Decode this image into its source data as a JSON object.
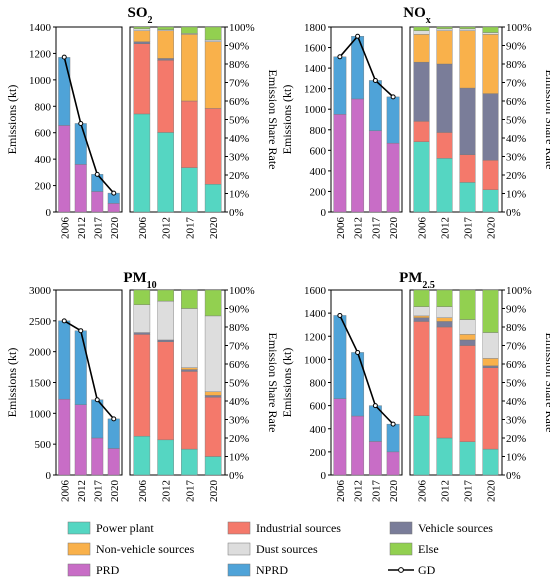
{
  "chart_data": [
    {
      "type": "bar",
      "title": "SO",
      "title_sub": "2",
      "x": [
        "2006",
        "2012",
        "2017",
        "2020"
      ],
      "emissions": {
        "ylabel": "Emissions (kt)",
        "ylim": [
          0,
          1400
        ],
        "ticks": [
          "0",
          "200",
          "400",
          "600",
          "800",
          "1000",
          "1200",
          "1400"
        ],
        "PRD": [
          655,
          360,
          155,
          65
        ],
        "NPRD": [
          515,
          310,
          130,
          78
        ],
        "GD": [
          1172,
          670,
          285,
          143
        ]
      },
      "share": {
        "ylabel": "Emission Share Rate",
        "ylim": [
          0,
          100
        ],
        "ticks": [
          "0%",
          "10%",
          "20%",
          "30%",
          "40%",
          "50%",
          "60%",
          "70%",
          "80%",
          "90%",
          "100%"
        ],
        "Power plant": [
          53,
          43,
          24,
          15
        ],
        "Industrial sources": [
          38,
          39,
          36,
          41
        ],
        "Vehicle sources": [
          1,
          1,
          0,
          0
        ],
        "Non-vehicle sources": [
          6,
          15,
          36,
          36
        ],
        "Dust sources": [
          1,
          0.5,
          0.5,
          1
        ],
        "Else": [
          1,
          1.5,
          3.5,
          7
        ]
      }
    },
    {
      "type": "bar",
      "title": "NO",
      "title_sub": "x",
      "x": [
        "2006",
        "2012",
        "2017",
        "2020"
      ],
      "emissions": {
        "ylabel": "Emissions (kt)",
        "ylim": [
          0,
          1800
        ],
        "ticks": [
          "0",
          "200",
          "400",
          "600",
          "800",
          "1000",
          "1200",
          "1400",
          "1600",
          "1800"
        ],
        "PRD": [
          950,
          1100,
          790,
          670
        ],
        "NPRD": [
          560,
          610,
          490,
          450
        ],
        "GD": [
          1510,
          1710,
          1280,
          1120
        ]
      },
      "share": {
        "ylabel": "Emission Share Rate",
        "ylim": [
          0,
          100
        ],
        "ticks": [
          "0%",
          "10%",
          "20%",
          "30%",
          "40%",
          "50%",
          "60%",
          "70%",
          "80%",
          "90%",
          "100%"
        ],
        "Power plant": [
          38,
          29,
          16,
          12
        ],
        "Industrial sources": [
          11,
          14,
          15,
          16
        ],
        "Vehicle sources": [
          32,
          37,
          36,
          36
        ],
        "Non-vehicle sources": [
          15,
          18,
          31,
          32
        ],
        "Dust sources": [
          2,
          1,
          1,
          1
        ],
        "Else": [
          2,
          1,
          1,
          3
        ]
      }
    },
    {
      "type": "bar",
      "title": "PM",
      "title_sub": "10",
      "x": [
        "2006",
        "2012",
        "2017",
        "2020"
      ],
      "emissions": {
        "ylabel": "Emissions (kt)",
        "ylim": [
          0,
          3000
        ],
        "ticks": [
          "0",
          "500",
          "1000",
          "1500",
          "2000",
          "2500",
          "3000"
        ],
        "PRD": [
          1230,
          1140,
          600,
          430
        ],
        "NPRD": [
          1270,
          1200,
          620,
          480
        ],
        "GD": [
          2500,
          2340,
          1220,
          910
        ]
      },
      "share": {
        "ylabel": "Emission Share Rate",
        "ylim": [
          0,
          100
        ],
        "ticks": [
          "0%",
          "10%",
          "20%",
          "30%",
          "40%",
          "50%",
          "60%",
          "70%",
          "80%",
          "90%",
          "100%"
        ],
        "Power plant": [
          21,
          19,
          14,
          10
        ],
        "Industrial sources": [
          55,
          53,
          42,
          32
        ],
        "Vehicle sources": [
          1,
          1,
          1,
          1
        ],
        "Non-vehicle sources": [
          0,
          0,
          1,
          2
        ],
        "Dust sources": [
          15,
          21,
          32,
          41
        ],
        "Else": [
          8,
          6,
          10,
          14
        ]
      }
    },
    {
      "type": "bar",
      "title": "PM",
      "title_sub": "2.5",
      "x": [
        "2006",
        "2012",
        "2017",
        "2020"
      ],
      "emissions": {
        "ylabel": "Emissions (kt)",
        "ylim": [
          0,
          1600
        ],
        "ticks": [
          "0",
          "200",
          "400",
          "600",
          "800",
          "1000",
          "1200",
          "1400",
          "1600"
        ],
        "PRD": [
          660,
          510,
          290,
          200
        ],
        "NPRD": [
          720,
          550,
          310,
          240
        ],
        "GD": [
          1380,
          1060,
          600,
          440
        ]
      },
      "share": {
        "ylabel": "Emission Share Rate",
        "ylim": [
          0,
          100
        ],
        "ticks": [
          "0%",
          "10%",
          "20%",
          "30%",
          "40%",
          "50%",
          "60%",
          "70%",
          "80%",
          "90%",
          "100%"
        ],
        "Power plant": [
          32,
          20,
          18,
          14
        ],
        "Industrial sources": [
          51,
          60,
          52,
          44
        ],
        "Vehicle sources": [
          2,
          3,
          3,
          1
        ],
        "Non-vehicle sources": [
          1,
          2,
          3,
          4
        ],
        "Dust sources": [
          5,
          6,
          8,
          14
        ],
        "Else": [
          9,
          9,
          16,
          23
        ]
      }
    }
  ],
  "legend": [
    {
      "name": "Power plant",
      "color": "#55d6c2",
      "kind": "box"
    },
    {
      "name": "Industrial sources",
      "color": "#f4796b",
      "kind": "box"
    },
    {
      "name": "Vehicle sources",
      "color": "#7a7d99",
      "kind": "box"
    },
    {
      "name": "Non-vehicle sources",
      "color": "#f9b14b",
      "kind": "box"
    },
    {
      "name": "Dust sources",
      "color": "#dddddd",
      "kind": "box"
    },
    {
      "name": "Else",
      "color": "#92d050",
      "kind": "box"
    },
    {
      "name": "PRD",
      "color": "#c86dc6",
      "kind": "box"
    },
    {
      "name": "NPRD",
      "color": "#4fa3d8",
      "kind": "box"
    },
    {
      "name": "GD",
      "color": "#000000",
      "kind": "line"
    }
  ],
  "share_order": [
    "Power plant",
    "Industrial sources",
    "Vehicle sources",
    "Non-vehicle sources",
    "Dust sources",
    "Else"
  ]
}
